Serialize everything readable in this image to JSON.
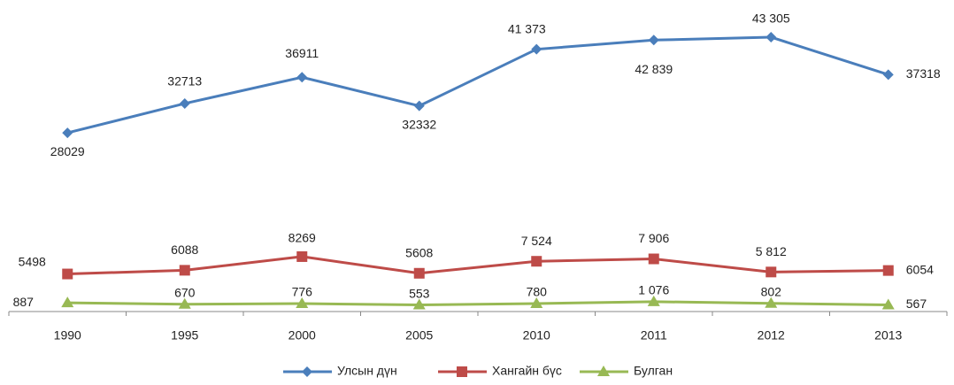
{
  "chart_data": {
    "type": "line",
    "categories": [
      "1990",
      "1995",
      "2000",
      "2005",
      "2010",
      "2011",
      "2012",
      "2013"
    ],
    "series": [
      {
        "name": "Улсын дүн",
        "color": "#4a7ebb",
        "marker": "diamond",
        "values": [
          28029,
          32713,
          36911,
          32332,
          41373,
          42839,
          43305,
          37318
        ],
        "value_labels": [
          "28029",
          "32713",
          "36911",
          "32332",
          "41 373",
          "42 839",
          "43 305",
          "37318"
        ]
      },
      {
        "name": "Хангайн бүс",
        "color": "#be4b48",
        "marker": "square",
        "values": [
          5498,
          6088,
          8269,
          5608,
          7524,
          7906,
          5812,
          6054
        ],
        "value_labels": [
          "5498",
          "6088",
          "8269",
          "5608",
          "7 524",
          "7 906",
          "5 812",
          "6054"
        ]
      },
      {
        "name": "Булган",
        "color": "#98b954",
        "marker": "triangle",
        "values": [
          887,
          670,
          776,
          553,
          780,
          1076,
          802,
          567
        ],
        "value_labels": [
          "887",
          "670",
          "776",
          "553",
          "780",
          "1 076",
          "802",
          "567"
        ]
      }
    ],
    "ylim": [
      -500,
      45000
    ],
    "legend": "bottom"
  }
}
